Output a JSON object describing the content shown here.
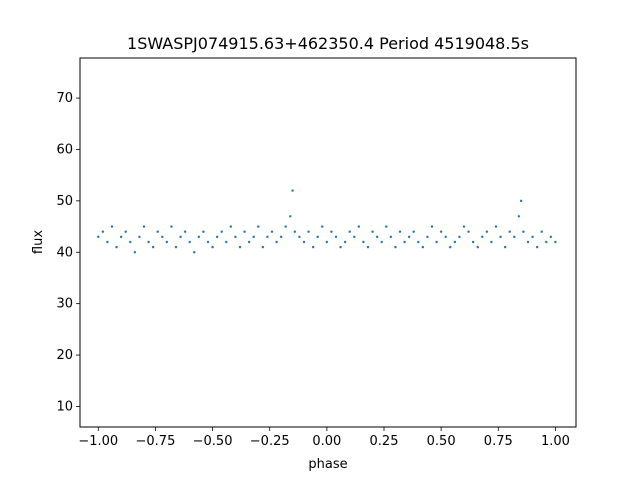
{
  "chart_data": {
    "type": "scatter",
    "title": "1SWASPJ074915.63+462350.4 Period 4519048.5s",
    "xlabel": "phase",
    "ylabel": "flux",
    "xlim": [
      -1.08,
      1.09
    ],
    "ylim": [
      6.0,
      77.8
    ],
    "x_ticks": [
      -1.0,
      -0.75,
      -0.5,
      -0.25,
      0.0,
      0.25,
      0.5,
      0.75,
      1.0
    ],
    "x_tick_labels": [
      "−1.00",
      "−0.75",
      "−0.50",
      "−0.25",
      "0.00",
      "0.25",
      "0.50",
      "0.75",
      "1.00"
    ],
    "y_ticks": [
      10,
      20,
      30,
      40,
      50,
      60,
      70
    ],
    "y_tick_labels": [
      "10",
      "20",
      "30",
      "40",
      "50",
      "60",
      "70"
    ],
    "grid": false,
    "marker_color": "#1f77b4",
    "series": [
      {
        "x": [
          -1.0,
          -0.98,
          -0.96,
          -0.94,
          -0.92,
          -0.9,
          -0.88,
          -0.86,
          -0.84,
          -0.82,
          -0.8,
          -0.78,
          -0.76,
          -0.74,
          -0.72,
          -0.7,
          -0.68,
          -0.66,
          -0.64,
          -0.62,
          -0.6,
          -0.58,
          -0.56,
          -0.54,
          -0.52,
          -0.5,
          -0.48,
          -0.46,
          -0.44,
          -0.42,
          -0.4,
          -0.38,
          -0.36,
          -0.34,
          -0.32,
          -0.3,
          -0.28,
          -0.26,
          -0.24,
          -0.22,
          -0.2,
          -0.18,
          -0.16,
          -0.15,
          -0.14,
          -0.12,
          -0.1,
          -0.08,
          -0.06,
          -0.04,
          -0.02,
          0.0,
          0.02,
          0.04,
          0.06,
          0.08,
          0.1,
          0.12,
          0.14,
          0.16,
          0.18,
          0.2,
          0.22,
          0.24,
          0.26,
          0.28,
          0.3,
          0.32,
          0.34,
          0.36,
          0.38,
          0.4,
          0.42,
          0.44,
          0.46,
          0.48,
          0.5,
          0.52,
          0.54,
          0.56,
          0.58,
          0.6,
          0.62,
          0.64,
          0.66,
          0.68,
          0.7,
          0.72,
          0.74,
          0.76,
          0.78,
          0.8,
          0.82,
          0.84,
          0.85,
          0.86,
          0.88,
          0.9,
          0.92,
          0.94,
          0.96,
          0.98,
          1.0
        ],
        "y": [
          43,
          44,
          42,
          45,
          41,
          43,
          44,
          42,
          40,
          43,
          45,
          42,
          41,
          44,
          43,
          42,
          45,
          41,
          43,
          44,
          42,
          40,
          43,
          44,
          42,
          41,
          43,
          44,
          42,
          45,
          43,
          41,
          44,
          42,
          43,
          45,
          41,
          43,
          44,
          42,
          43,
          45,
          47,
          52,
          44,
          43,
          42,
          44,
          41,
          43,
          45,
          42,
          44,
          43,
          41,
          42,
          44,
          43,
          45,
          42,
          41,
          44,
          43,
          42,
          45,
          43,
          41,
          44,
          42,
          43,
          44,
          42,
          41,
          43,
          45,
          42,
          44,
          43,
          41,
          42,
          43,
          45,
          44,
          42,
          41,
          43,
          44,
          42,
          45,
          43,
          41,
          44,
          43,
          47,
          50,
          44,
          42,
          43,
          41,
          44,
          42,
          43,
          42
        ]
      }
    ]
  }
}
